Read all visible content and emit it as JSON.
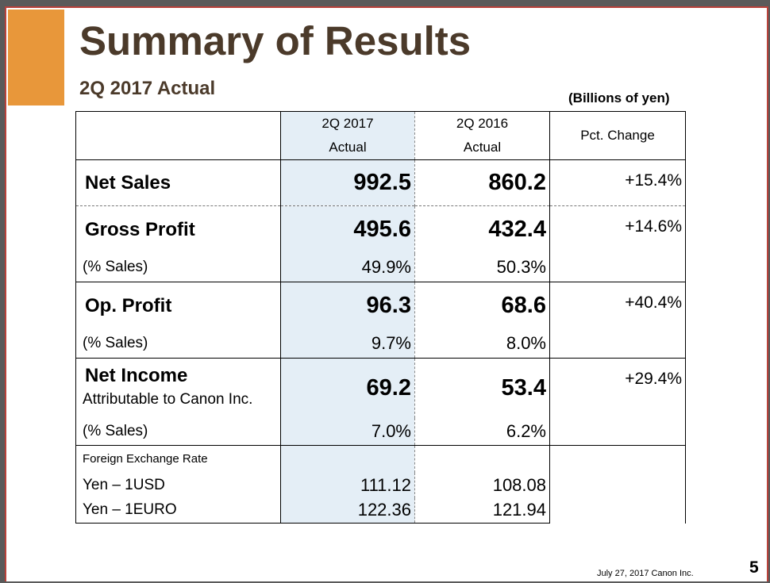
{
  "title": "Summary of Results",
  "subtitle": "2Q 2017 Actual",
  "units": "(Billions of yen)",
  "columns": {
    "c1_line1": "2Q 2017",
    "c1_line2": "Actual",
    "c2_line1": "2Q 2016",
    "c2_line2": "Actual",
    "c3": "Pct.  Change"
  },
  "rows": {
    "net_sales": {
      "label": "Net Sales",
      "v2017": "992.5",
      "v2016": "860.2",
      "change": "+15.4%"
    },
    "gross_profit": {
      "label": "Gross Profit",
      "v2017": "495.6",
      "v2016": "432.4",
      "change": "+14.6%",
      "pct_label": "(% Sales)",
      "pct2017": "49.9%",
      "pct2016": "50.3%"
    },
    "op_profit": {
      "label": "Op. Profit",
      "v2017": "96.3",
      "v2016": "68.6",
      "change": "+40.4%",
      "pct_label": "(% Sales)",
      "pct2017": "9.7%",
      "pct2016": "8.0%"
    },
    "net_income": {
      "label": "Net Income",
      "sublabel": "Attributable to Canon Inc.",
      "v2017": "69.2",
      "v2016": "53.4",
      "change": "+29.4%",
      "pct_label": "(% Sales)",
      "pct2017": "7.0%",
      "pct2016": "6.2%"
    },
    "fx": {
      "label": "Foreign Exchange Rate",
      "usd_label": "Yen – 1USD",
      "usd2017": "111.12",
      "usd2016": "108.08",
      "eur_label": "Yen – 1EURO",
      "eur2017": "122.36",
      "eur2016": "121.94"
    }
  },
  "footer": {
    "date": "July 27, 2017 Canon Inc.",
    "page": "5"
  },
  "colors": {
    "accent": "#e8973a",
    "title": "#4b3a2a",
    "highlight_col": "#e4eef6",
    "frame": "#b9413a"
  }
}
